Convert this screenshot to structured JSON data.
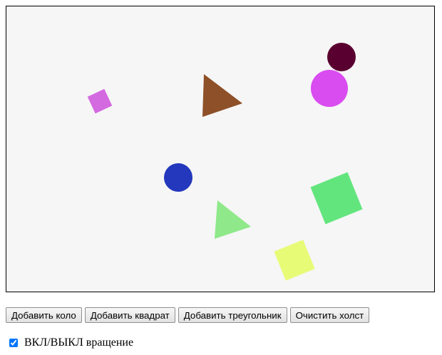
{
  "canvas": {
    "background": "#f6f6f6",
    "shapes": [
      {
        "kind": "circle",
        "color": "#5a0030"
      },
      {
        "kind": "circle",
        "color": "#d94cf0"
      },
      {
        "kind": "square",
        "color": "#d46ae0"
      },
      {
        "kind": "triangle",
        "color": "#8e5028"
      },
      {
        "kind": "circle",
        "color": "#2338bd"
      },
      {
        "kind": "square",
        "color": "#63e57e"
      },
      {
        "kind": "triangle",
        "color": "#8fe88a"
      },
      {
        "kind": "square",
        "color": "#e7fb77"
      }
    ]
  },
  "controls": {
    "add_circle_label": "Добавить коло",
    "add_square_label": "Добавить квадрат",
    "add_triangle_label": "Добавить треугольник",
    "clear_label": "Очистить холст"
  },
  "rotation_toggle": {
    "label": "ВКЛ/ВЫКЛ вращение",
    "checked": true
  }
}
